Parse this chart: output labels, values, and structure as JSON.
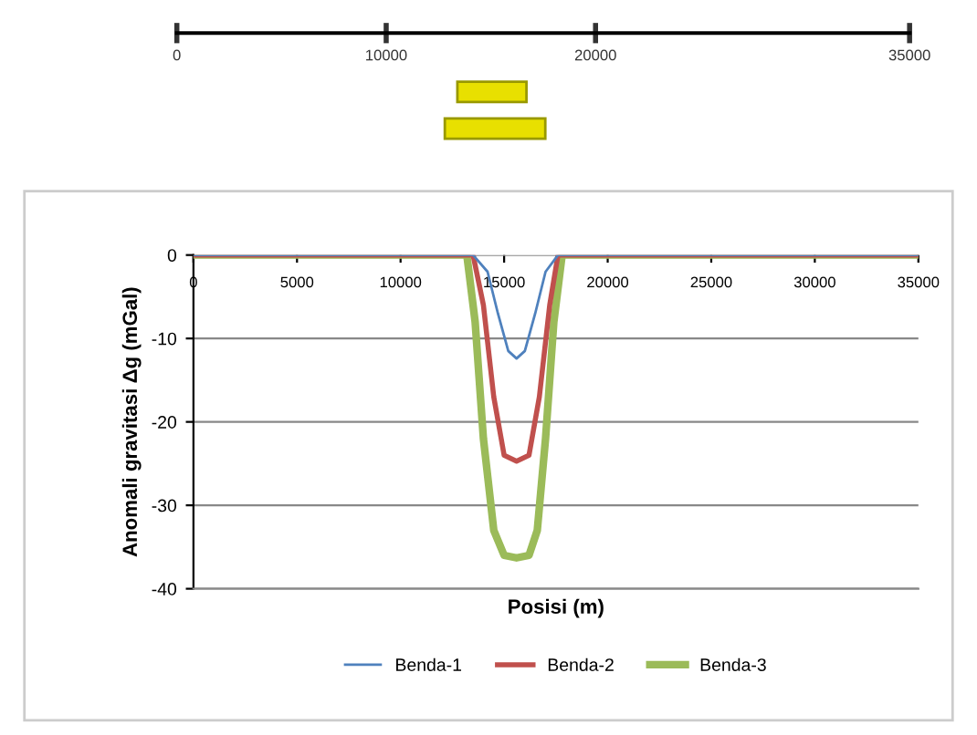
{
  "chart_data": [
    {
      "type": "bar",
      "orientation": "horizontal",
      "categories": [
        null,
        null
      ],
      "base": [
        13400,
        12800
      ],
      "values": [
        3300,
        4800
      ],
      "color": "#e8e000",
      "xlim": [
        0,
        35000
      ],
      "xticks": [
        0,
        10000,
        20000,
        35000
      ]
    },
    {
      "type": "line",
      "xlabel": "Posisi (m)",
      "ylabel": "Anomali gravitasi Δg (mGal)",
      "xlim": [
        0,
        35000
      ],
      "xticks": [
        0,
        5000,
        10000,
        15000,
        20000,
        25000,
        30000,
        35000
      ],
      "ylim": [
        -40,
        0
      ],
      "yticks": [
        -40,
        -30,
        -20,
        -10,
        0
      ],
      "grid": "y",
      "legend": "bottom",
      "marker": "none",
      "line_style": "solid",
      "series": [
        {
          "name": "Benda-1",
          "color": "#4f81bd",
          "x": [
            0,
            13500,
            14200,
            14700,
            15200,
            15600,
            16000,
            16500,
            17000,
            17600,
            35000
          ],
          "values": [
            0,
            0,
            -2,
            -7,
            -11.5,
            -12.4,
            -11.5,
            -7,
            -2,
            0,
            0
          ]
        },
        {
          "name": "Benda-2",
          "color": "#c0504d",
          "x": [
            0,
            13500,
            14000,
            14500,
            15000,
            15600,
            16200,
            16700,
            17200,
            17600,
            35000
          ],
          "values": [
            0,
            0,
            -6,
            -17,
            -24,
            -24.7,
            -24,
            -17,
            -6,
            0,
            0
          ]
        },
        {
          "name": "Benda-3",
          "color": "#9bbb59",
          "x": [
            0,
            13200,
            13600,
            14000,
            14500,
            15000,
            15600,
            16200,
            16600,
            17000,
            17400,
            17800,
            35000
          ],
          "values": [
            0,
            0,
            -8,
            -22,
            -33,
            -36,
            -36.3,
            -36,
            -33,
            -22,
            -8,
            0,
            0
          ]
        }
      ]
    }
  ]
}
